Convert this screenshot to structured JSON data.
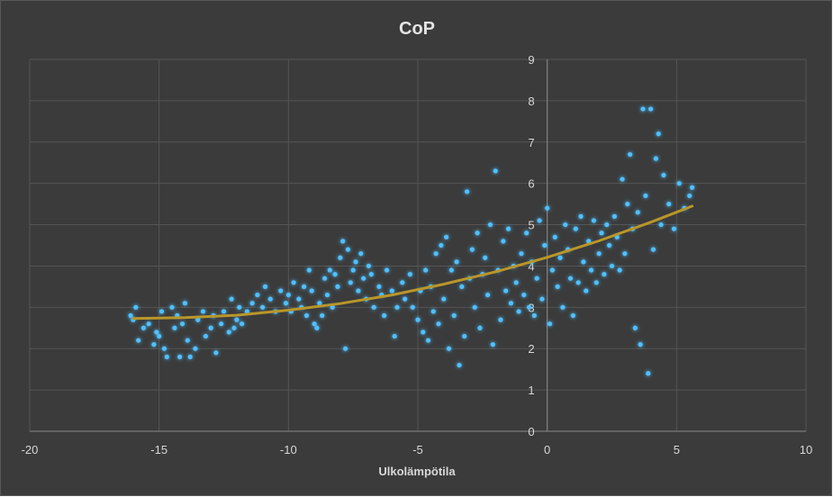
{
  "chart_data": {
    "type": "scatter",
    "title": "CoP",
    "xlabel": "Ulkolämpötila",
    "ylabel": "",
    "xlim": [
      -20,
      10
    ],
    "ylim": [
      0,
      9
    ],
    "x_ticks": [
      -20,
      -15,
      -10,
      -5,
      0,
      5,
      10
    ],
    "y_ticks": [
      0,
      1,
      2,
      3,
      4,
      5,
      6,
      7,
      8,
      9
    ],
    "grid": true,
    "legend": "none",
    "colors": {
      "background": "#3b3b3b",
      "points": "#4fc0ff",
      "glow": "#1f8fd6",
      "trendline": "#b8962a",
      "grid": "#555555"
    },
    "series": [
      {
        "name": "CoP",
        "points": [
          [
            -16.1,
            2.8
          ],
          [
            -16.0,
            2.7
          ],
          [
            -15.9,
            3.0
          ],
          [
            -15.8,
            2.2
          ],
          [
            -15.6,
            2.5
          ],
          [
            -15.4,
            2.6
          ],
          [
            -15.2,
            2.1
          ],
          [
            -15.1,
            2.4
          ],
          [
            -15.0,
            2.3
          ],
          [
            -14.9,
            2.9
          ],
          [
            -14.8,
            2.0
          ],
          [
            -14.7,
            1.8
          ],
          [
            -14.5,
            3.0
          ],
          [
            -14.4,
            2.5
          ],
          [
            -14.3,
            2.8
          ],
          [
            -14.2,
            1.8
          ],
          [
            -14.1,
            2.6
          ],
          [
            -14.0,
            3.1
          ],
          [
            -13.9,
            2.2
          ],
          [
            -13.8,
            1.8
          ],
          [
            -13.6,
            2.0
          ],
          [
            -13.5,
            2.7
          ],
          [
            -13.3,
            2.9
          ],
          [
            -13.2,
            2.3
          ],
          [
            -13.0,
            2.5
          ],
          [
            -12.9,
            2.8
          ],
          [
            -12.8,
            1.9
          ],
          [
            -12.6,
            2.6
          ],
          [
            -12.5,
            2.9
          ],
          [
            -12.3,
            2.4
          ],
          [
            -12.2,
            3.2
          ],
          [
            -12.1,
            2.5
          ],
          [
            -12.0,
            2.7
          ],
          [
            -11.9,
            3.0
          ],
          [
            -11.8,
            2.6
          ],
          [
            -11.6,
            2.9
          ],
          [
            -11.4,
            3.1
          ],
          [
            -11.2,
            3.3
          ],
          [
            -11.0,
            3.0
          ],
          [
            -10.9,
            3.5
          ],
          [
            -10.7,
            3.2
          ],
          [
            -10.5,
            2.9
          ],
          [
            -10.3,
            3.4
          ],
          [
            -10.1,
            3.1
          ],
          [
            -10.0,
            3.3
          ],
          [
            -9.9,
            2.9
          ],
          [
            -9.8,
            3.6
          ],
          [
            -9.6,
            3.2
          ],
          [
            -9.5,
            3.0
          ],
          [
            -9.4,
            3.5
          ],
          [
            -9.3,
            2.8
          ],
          [
            -9.2,
            3.9
          ],
          [
            -9.1,
            3.4
          ],
          [
            -9.0,
            2.6
          ],
          [
            -8.9,
            2.5
          ],
          [
            -8.8,
            3.1
          ],
          [
            -8.7,
            2.8
          ],
          [
            -8.6,
            3.7
          ],
          [
            -8.5,
            3.3
          ],
          [
            -8.4,
            3.9
          ],
          [
            -8.3,
            3.0
          ],
          [
            -8.2,
            3.8
          ],
          [
            -8.1,
            3.5
          ],
          [
            -8.0,
            4.2
          ],
          [
            -7.9,
            4.6
          ],
          [
            -7.8,
            2.0
          ],
          [
            -7.7,
            4.4
          ],
          [
            -7.6,
            3.6
          ],
          [
            -7.5,
            3.9
          ],
          [
            -7.4,
            4.1
          ],
          [
            -7.3,
            3.4
          ],
          [
            -7.2,
            4.3
          ],
          [
            -7.1,
            3.7
          ],
          [
            -7.0,
            3.2
          ],
          [
            -6.9,
            4.0
          ],
          [
            -6.8,
            3.8
          ],
          [
            -6.7,
            3.0
          ],
          [
            -6.5,
            3.5
          ],
          [
            -6.4,
            3.3
          ],
          [
            -6.3,
            2.8
          ],
          [
            -6.2,
            3.9
          ],
          [
            -6.0,
            3.4
          ],
          [
            -5.9,
            2.3
          ],
          [
            -5.8,
            3.0
          ],
          [
            -5.6,
            3.6
          ],
          [
            -5.5,
            3.2
          ],
          [
            -5.3,
            3.8
          ],
          [
            -5.2,
            3.0
          ],
          [
            -5.0,
            2.7
          ],
          [
            -4.9,
            3.4
          ],
          [
            -4.8,
            2.4
          ],
          [
            -4.7,
            3.9
          ],
          [
            -4.6,
            2.2
          ],
          [
            -4.5,
            3.5
          ],
          [
            -4.4,
            2.9
          ],
          [
            -4.3,
            4.3
          ],
          [
            -4.2,
            2.6
          ],
          [
            -4.1,
            4.5
          ],
          [
            -4.0,
            3.2
          ],
          [
            -3.9,
            4.7
          ],
          [
            -3.8,
            2.0
          ],
          [
            -3.7,
            3.9
          ],
          [
            -3.6,
            2.8
          ],
          [
            -3.5,
            4.1
          ],
          [
            -3.4,
            1.6
          ],
          [
            -3.3,
            3.5
          ],
          [
            -3.2,
            2.3
          ],
          [
            -3.1,
            5.8
          ],
          [
            -3.0,
            3.7
          ],
          [
            -2.9,
            4.4
          ],
          [
            -2.8,
            3.0
          ],
          [
            -2.7,
            4.8
          ],
          [
            -2.6,
            2.5
          ],
          [
            -2.5,
            3.8
          ],
          [
            -2.4,
            4.2
          ],
          [
            -2.3,
            3.3
          ],
          [
            -2.2,
            5.0
          ],
          [
            -2.1,
            2.1
          ],
          [
            -2.0,
            6.3
          ],
          [
            -1.9,
            3.9
          ],
          [
            -1.8,
            2.7
          ],
          [
            -1.7,
            4.6
          ],
          [
            -1.6,
            3.4
          ],
          [
            -1.5,
            4.9
          ],
          [
            -1.4,
            3.1
          ],
          [
            -1.3,
            4.0
          ],
          [
            -1.2,
            3.6
          ],
          [
            -1.1,
            2.9
          ],
          [
            -1.0,
            4.3
          ],
          [
            -0.9,
            3.3
          ],
          [
            -0.8,
            4.8
          ],
          [
            -0.7,
            3.0
          ],
          [
            -0.6,
            4.1
          ],
          [
            -0.5,
            2.8
          ],
          [
            -0.4,
            3.7
          ],
          [
            -0.3,
            5.1
          ],
          [
            -0.2,
            3.2
          ],
          [
            -0.1,
            4.5
          ],
          [
            0.0,
            5.4
          ],
          [
            0.1,
            2.6
          ],
          [
            0.2,
            3.9
          ],
          [
            0.3,
            4.7
          ],
          [
            0.4,
            3.5
          ],
          [
            0.5,
            4.2
          ],
          [
            0.6,
            3.0
          ],
          [
            0.7,
            5.0
          ],
          [
            0.8,
            4.4
          ],
          [
            0.9,
            3.7
          ],
          [
            1.0,
            2.8
          ],
          [
            1.1,
            4.9
          ],
          [
            1.2,
            3.6
          ],
          [
            1.3,
            5.2
          ],
          [
            1.4,
            4.1
          ],
          [
            1.5,
            3.4
          ],
          [
            1.6,
            4.6
          ],
          [
            1.7,
            3.9
          ],
          [
            1.8,
            5.1
          ],
          [
            1.9,
            3.6
          ],
          [
            2.0,
            4.3
          ],
          [
            2.1,
            4.8
          ],
          [
            2.2,
            3.8
          ],
          [
            2.3,
            5.0
          ],
          [
            2.4,
            4.5
          ],
          [
            2.5,
            4.0
          ],
          [
            2.6,
            5.2
          ],
          [
            2.7,
            4.7
          ],
          [
            2.8,
            3.9
          ],
          [
            2.9,
            6.1
          ],
          [
            3.0,
            4.3
          ],
          [
            3.1,
            5.5
          ],
          [
            3.2,
            6.7
          ],
          [
            3.3,
            4.9
          ],
          [
            3.4,
            2.5
          ],
          [
            3.5,
            5.3
          ],
          [
            3.6,
            2.1
          ],
          [
            3.7,
            7.8
          ],
          [
            3.8,
            5.7
          ],
          [
            3.9,
            1.4
          ],
          [
            4.0,
            7.8
          ],
          [
            4.1,
            4.4
          ],
          [
            4.2,
            6.6
          ],
          [
            4.3,
            7.2
          ],
          [
            4.4,
            5.0
          ],
          [
            4.5,
            6.2
          ],
          [
            4.7,
            5.5
          ],
          [
            4.9,
            4.9
          ],
          [
            5.1,
            6.0
          ],
          [
            5.3,
            5.4
          ],
          [
            5.5,
            5.7
          ],
          [
            5.6,
            5.9
          ]
        ]
      },
      {
        "name": "Trendline",
        "type": "line",
        "points": [
          [
            -16.0,
            2.73
          ],
          [
            -14.0,
            2.75
          ],
          [
            -12.0,
            2.81
          ],
          [
            -10.0,
            2.93
          ],
          [
            -8.0,
            3.09
          ],
          [
            -6.0,
            3.3
          ],
          [
            -4.0,
            3.56
          ],
          [
            -2.0,
            3.86
          ],
          [
            0.0,
            4.21
          ],
          [
            2.0,
            4.61
          ],
          [
            4.0,
            5.06
          ],
          [
            5.6,
            5.45
          ]
        ]
      }
    ]
  }
}
